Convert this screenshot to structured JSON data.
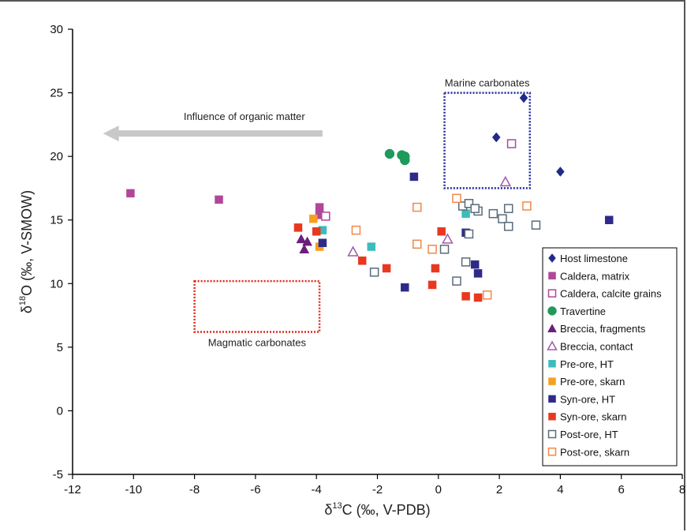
{
  "chart_data": {
    "type": "scatter",
    "xlabel": "δ13C (‰, V-PDB)",
    "ylabel": "δ18O (‰, V-SMOW)",
    "xlim": [
      -12,
      8
    ],
    "ylim": [
      -5,
      30
    ],
    "xticks": [
      -12,
      -10,
      -8,
      -6,
      -4,
      -2,
      0,
      2,
      4,
      6,
      8
    ],
    "yticks": [
      -5,
      0,
      5,
      10,
      15,
      20,
      25,
      30
    ],
    "grid": false,
    "legend_position": "bottom-right",
    "series": [
      {
        "name": "Host limestone",
        "marker": "diamond",
        "filled": true,
        "color": "#1f2a8a",
        "points": [
          [
            1.9,
            21.5
          ],
          [
            2.8,
            24.6
          ],
          [
            4.0,
            18.8
          ]
        ]
      },
      {
        "name": "Caldera, matrix",
        "marker": "square",
        "filled": true,
        "color": "#b0479a",
        "points": [
          [
            -10.1,
            17.1
          ],
          [
            -7.2,
            16.6
          ],
          [
            -3.9,
            16.0
          ],
          [
            -3.9,
            15.4
          ]
        ]
      },
      {
        "name": "Caldera, calcite grains",
        "marker": "square",
        "filled": false,
        "color": "#b0479a",
        "points": [
          [
            2.4,
            21.0
          ],
          [
            -3.7,
            15.3
          ]
        ]
      },
      {
        "name": "Travertine",
        "marker": "circle",
        "filled": true,
        "color": "#1e9a5a",
        "points": [
          [
            -1.6,
            20.2
          ],
          [
            -1.2,
            20.1
          ],
          [
            -1.1,
            20.0
          ],
          [
            -1.1,
            19.7
          ]
        ]
      },
      {
        "name": "Breccia, fragments",
        "marker": "triangle",
        "filled": true,
        "color": "#6a1f7a",
        "points": [
          [
            -4.5,
            13.5
          ],
          [
            -4.3,
            13.3
          ],
          [
            -4.4,
            12.7
          ]
        ]
      },
      {
        "name": "Breccia, contact",
        "marker": "triangle",
        "filled": false,
        "color": "#a05aa8",
        "points": [
          [
            2.2,
            18.0
          ],
          [
            0.3,
            13.5
          ],
          [
            -2.8,
            12.5
          ]
        ]
      },
      {
        "name": "Pre-ore, HT",
        "marker": "square",
        "filled": true,
        "color": "#3cbcbc",
        "points": [
          [
            -3.8,
            14.2
          ],
          [
            -2.2,
            12.9
          ],
          [
            0.9,
            15.5
          ]
        ]
      },
      {
        "name": "Pre-ore, skarn",
        "marker": "square",
        "filled": true,
        "color": "#f5a020",
        "points": [
          [
            -4.1,
            15.1
          ],
          [
            -3.9,
            12.9
          ]
        ]
      },
      {
        "name": "Syn-ore, HT",
        "marker": "square",
        "filled": true,
        "color": "#2e2a8a",
        "points": [
          [
            -0.8,
            18.4
          ],
          [
            -3.8,
            13.2
          ],
          [
            0.9,
            14.0
          ],
          [
            1.2,
            11.5
          ],
          [
            1.3,
            10.8
          ],
          [
            -1.1,
            9.7
          ],
          [
            5.6,
            15.0
          ]
        ]
      },
      {
        "name": "Syn-ore, skarn",
        "marker": "square",
        "filled": true,
        "color": "#e83820",
        "points": [
          [
            -4.6,
            14.4
          ],
          [
            -4.0,
            14.1
          ],
          [
            -2.5,
            11.8
          ],
          [
            -1.7,
            11.2
          ],
          [
            -0.1,
            11.2
          ],
          [
            0.1,
            14.1
          ],
          [
            -0.2,
            9.9
          ],
          [
            0.9,
            9.0
          ],
          [
            1.3,
            8.9
          ]
        ]
      },
      {
        "name": "Post-ore, HT",
        "marker": "square",
        "filled": false,
        "color": "#5a6a7a",
        "points": [
          [
            -2.1,
            10.9
          ],
          [
            0.2,
            12.7
          ],
          [
            0.6,
            10.2
          ],
          [
            0.8,
            16.1
          ],
          [
            1.0,
            16.3
          ],
          [
            1.3,
            15.7
          ],
          [
            0.9,
            11.7
          ],
          [
            1.0,
            13.9
          ],
          [
            1.2,
            15.9
          ],
          [
            1.8,
            15.5
          ],
          [
            2.1,
            15.1
          ],
          [
            2.3,
            14.5
          ],
          [
            2.3,
            15.9
          ],
          [
            3.2,
            14.6
          ]
        ]
      },
      {
        "name": "Post-ore, skarn",
        "marker": "square",
        "filled": false,
        "color": "#f0884a",
        "points": [
          [
            -2.7,
            14.2
          ],
          [
            -0.7,
            16.0
          ],
          [
            -0.7,
            13.1
          ],
          [
            -0.2,
            12.7
          ],
          [
            0.6,
            16.7
          ],
          [
            1.6,
            9.1
          ],
          [
            2.9,
            16.1
          ]
        ]
      }
    ],
    "regions": [
      {
        "label": "Marine carbonates",
        "color": "#1a2a9a",
        "x": [
          0.2,
          3.0
        ],
        "y": [
          17.5,
          25.0
        ]
      },
      {
        "label": "Magmatic carbonates",
        "color": "#e0281a",
        "x": [
          -8.0,
          -3.9
        ],
        "y": [
          6.2,
          10.2
        ]
      }
    ],
    "arrow": {
      "label": "Influence of organic matter",
      "from": [
        -3.8,
        21.8
      ],
      "to": [
        -11.0,
        21.8
      ],
      "color": "#c8c8c8"
    }
  }
}
